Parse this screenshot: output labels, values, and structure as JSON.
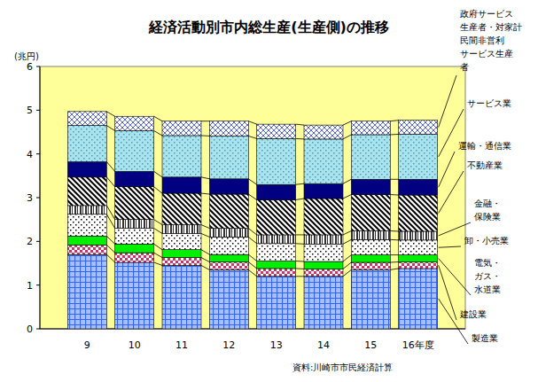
{
  "chart_data": {
    "type": "bar",
    "stacked": true,
    "grid": false,
    "title": "経済活動別市内総生産(生産側)の推移",
    "y_label": "(兆円)",
    "source": "資料:川崎市市民経済計算",
    "categories": [
      "9",
      "10",
      "11",
      "12",
      "13",
      "14",
      "15",
      "16年度"
    ],
    "ylim": [
      0,
      6
    ],
    "yticks": [
      0,
      1,
      2,
      3,
      4,
      5,
      6
    ],
    "series": [
      {
        "name": "製造業",
        "color": "#3366ff",
        "values": [
          1.7,
          1.52,
          1.45,
          1.35,
          1.2,
          1.2,
          1.35,
          1.38
        ]
      },
      {
        "name": "建設業",
        "color": "#cc3366",
        "values": [
          0.22,
          0.22,
          0.18,
          0.18,
          0.18,
          0.17,
          0.17,
          0.15
        ]
      },
      {
        "name": "電気・\nガス・\n水道業",
        "color": "#00ee00",
        "values": [
          0.2,
          0.2,
          0.18,
          0.17,
          0.17,
          0.17,
          0.17,
          0.16
        ]
      },
      {
        "name": "卸・小売業",
        "color": "#000000",
        "values": [
          0.5,
          0.36,
          0.37,
          0.4,
          0.4,
          0.4,
          0.35,
          0.34
        ]
      },
      {
        "name": "金融・\n保険業",
        "color": "#333333",
        "values": [
          0.2,
          0.2,
          0.2,
          0.2,
          0.2,
          0.21,
          0.2,
          0.2
        ]
      },
      {
        "name": "不動産業",
        "color": "#000000",
        "values": [
          0.65,
          0.75,
          0.72,
          0.78,
          0.8,
          0.83,
          0.83,
          0.83
        ]
      },
      {
        "name": "運輸・通信業",
        "color": "#000080",
        "values": [
          0.35,
          0.35,
          0.37,
          0.35,
          0.35,
          0.34,
          0.35,
          0.36
        ]
      },
      {
        "name": "サービス業",
        "color": "#a8e4f0",
        "values": [
          0.83,
          0.93,
          0.95,
          0.98,
          1.05,
          1.02,
          1.02,
          1.03
        ]
      },
      {
        "name": "政府サービス\n生産者・対家計\n民間非営利\nサービス生産\n者",
        "color": "#5566cc",
        "values": [
          0.32,
          0.33,
          0.33,
          0.34,
          0.33,
          0.32,
          0.31,
          0.32
        ]
      }
    ]
  }
}
